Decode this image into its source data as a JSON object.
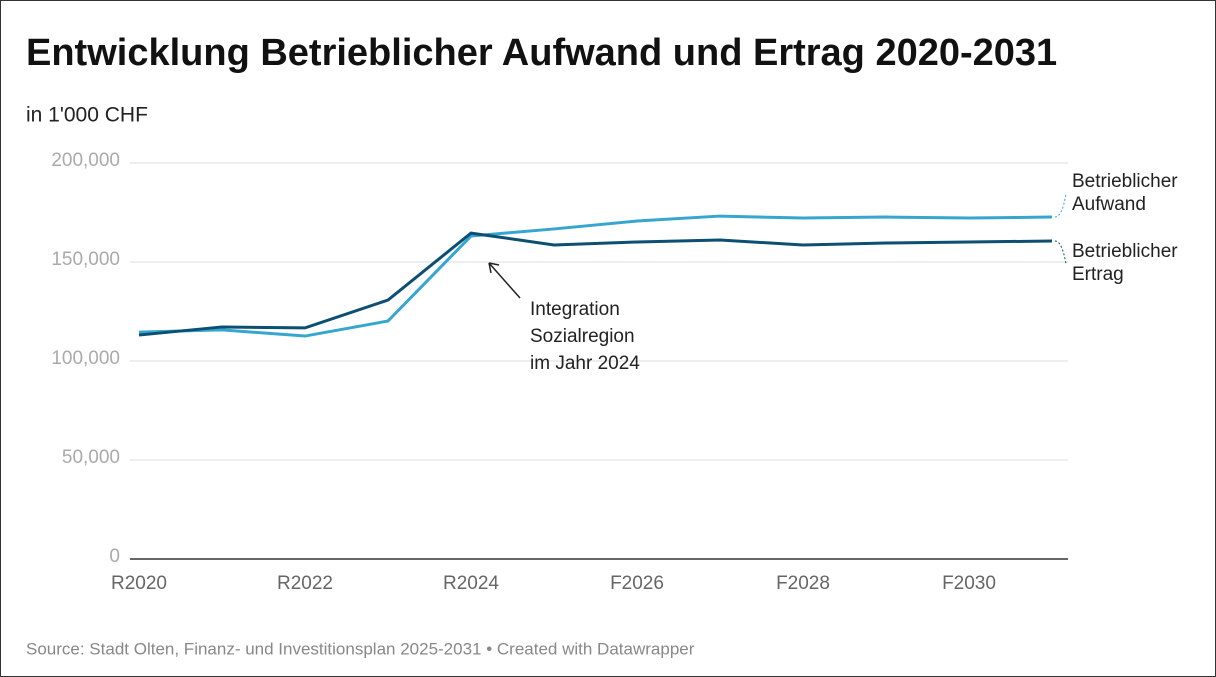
{
  "chart_data": {
    "type": "line",
    "title": "Entwicklung Betrieblicher Aufwand und Ertrag 2020-2031",
    "subtitle": "in 1'000 CHF",
    "source": "Source: Stadt Olten, Finanz- und Investitionsplan 2025-2031 • Created with Datawrapper",
    "categories": [
      "R2020",
      null,
      "R2022",
      null,
      "R2024",
      null,
      "F2026",
      null,
      "F2028",
      null,
      "F2030",
      null
    ],
    "series": [
      {
        "name": "Betrieblicher Aufwand",
        "color": "#36a6d0",
        "values": [
          114600,
          115700,
          112600,
          120200,
          163100,
          166700,
          170700,
          173200,
          172200,
          172700,
          172200,
          172700
        ]
      },
      {
        "name": "Betrieblicher Ertrag",
        "color": "#0d4f72",
        "values": [
          113100,
          117200,
          116700,
          130800,
          164600,
          158600,
          160100,
          161100,
          158600,
          159600,
          160100,
          160600
        ]
      }
    ],
    "ylim": [
      0,
      200000
    ],
    "yticks": [
      0,
      {
        "value": 50000,
        "label": "50,000"
      },
      {
        "value": 100000,
        "label": "100,000"
      },
      {
        "value": 150000,
        "label": "150,000"
      },
      {
        "value": 200000,
        "label": "200,000"
      }
    ],
    "grid": true,
    "annotations": [
      {
        "lines": [
          "Integration",
          "Sozialregion",
          "im Jahr 2024"
        ]
      }
    ]
  }
}
